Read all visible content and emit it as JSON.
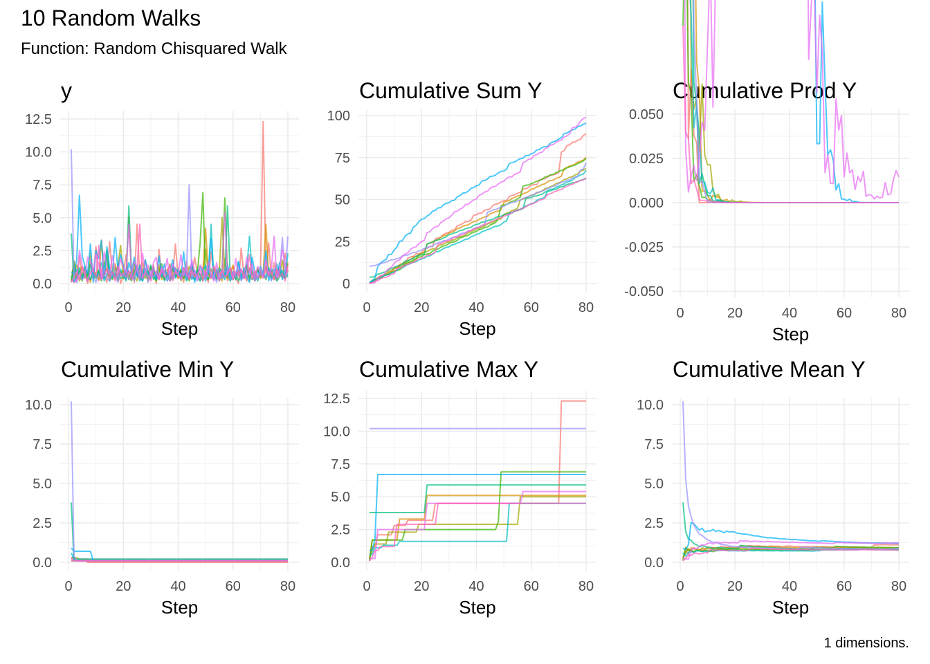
{
  "title": "10 Random Walks",
  "subtitle": "Function: Random Chisquared Walk",
  "caption": "1 dimensions.",
  "chart_data": {
    "type": "line",
    "colors": [
      "#F8766D",
      "#D89000",
      "#A3A500",
      "#39B600",
      "#00BF7D",
      "#00BFC4",
      "#00B0F6",
      "#9590FF",
      "#E76BF3",
      "#FF62BC"
    ],
    "x": "Step 1..80",
    "grid": true,
    "legend": "none",
    "series": [
      {
        "y": [
          0.3,
          1.2,
          0.1,
          2.1,
          0.5,
          0.9,
          0.0,
          1.6,
          0.4,
          2.8,
          0.2,
          1.1,
          0.6,
          0.1,
          3.2,
          0.8,
          0.3,
          1.5,
          0.0,
          0.7,
          2.2,
          0.4,
          1.0,
          0.1,
          4.5,
          0.6,
          0.2,
          1.8,
          0.9,
          0.3,
          1.4,
          0.0,
          2.6,
          0.5,
          0.8,
          1.1,
          0.2,
          0.6,
          3.0,
          0.4,
          0.9,
          0.1,
          1.7,
          0.3,
          0.5,
          2.0,
          0.8,
          0.2,
          1.2,
          0.6,
          0.1,
          2.4,
          0.7,
          0.3,
          1.0,
          0.5,
          1.9,
          0.2,
          0.8,
          1.3,
          0.4,
          0.0,
          2.7,
          0.6,
          0.2,
          1.1,
          0.9,
          0.3,
          0.5,
          0.7,
          12.3,
          0.8,
          3.1,
          0.4,
          1.6,
          0.2,
          1.0,
          0.6,
          2.3,
          0.9
        ]
      },
      {
        "y": [
          0.2,
          1.7,
          0.5,
          0.9,
          1.3,
          0.4,
          0.8,
          0.1,
          1.1,
          0.6,
          0.3,
          3.3,
          0.7,
          1.2,
          0.4,
          0.9,
          1.5,
          0.2,
          0.8,
          1.0,
          0.6,
          5.1,
          0.3,
          1.1,
          0.7,
          0.4,
          1.6,
          0.9,
          0.2,
          1.3,
          0.5,
          0.8,
          1.4,
          0.3,
          1.0,
          0.6,
          0.2,
          1.2,
          0.7,
          0.4,
          1.1,
          0.5,
          0.9,
          0.3,
          1.5,
          0.6,
          0.8,
          0.2,
          1.0,
          4.2,
          0.7,
          0.4,
          1.3,
          0.6,
          0.9,
          0.2,
          1.1,
          0.5,
          0.8,
          1.4,
          0.3,
          1.0,
          0.6,
          0.9,
          0.4,
          1.2,
          0.7,
          0.2,
          1.1,
          0.5,
          0.8,
          4.5,
          0.6,
          1.0,
          0.3,
          0.9,
          1.2,
          0.4,
          0.7,
          1.6
        ]
      },
      {
        "y": [
          0.3,
          0.9,
          1.4,
          0.2,
          0.7,
          1.1,
          0.5,
          2.3,
          0.4,
          0.8,
          1.0,
          0.3,
          0.6,
          1.2,
          0.2,
          0.9,
          0.5,
          1.3,
          2.9,
          0.4,
          0.8,
          0.3,
          1.1,
          0.6,
          0.2,
          1.4,
          0.7,
          0.4,
          1.0,
          0.5,
          0.9,
          0.2,
          1.2,
          0.6,
          0.3,
          0.8,
          1.5,
          0.4,
          0.7,
          1.1,
          0.2,
          0.9,
          0.5,
          1.3,
          0.6,
          0.3,
          1.0,
          0.7,
          0.4,
          2.6,
          0.8,
          0.5,
          1.2,
          0.3,
          0.9,
          5.0,
          0.6,
          0.4,
          1.1,
          0.7,
          0.3,
          1.0,
          0.5,
          0.8,
          1.4,
          0.2,
          0.9,
          0.6,
          1.2,
          0.4,
          0.7,
          1.3,
          0.5,
          0.9,
          0.3,
          1.1,
          0.6,
          1.8,
          0.4,
          1.0
        ]
      },
      {
        "y": [
          0.1,
          1.7,
          0.4,
          0.9,
          0.2,
          1.3,
          0.6,
          0.3,
          1.1,
          0.5,
          0.8,
          0.2,
          1.4,
          2.5,
          0.7,
          0.3,
          1.2,
          0.6,
          0.9,
          0.4,
          1.0,
          0.5,
          0.2,
          1.6,
          0.8,
          0.3,
          1.1,
          0.7,
          0.4,
          1.3,
          0.6,
          0.2,
          0.9,
          1.5,
          0.4,
          0.8,
          0.3,
          1.2,
          0.5,
          0.7,
          1.0,
          0.4,
          0.9,
          0.2,
          1.3,
          0.6,
          0.8,
          3.1,
          6.9,
          0.5,
          0.3,
          1.1,
          0.7,
          0.4,
          1.2,
          0.9,
          6.5,
          0.6,
          0.2,
          0.8,
          0.5,
          1.0,
          0.3,
          0.7,
          1.4,
          0.4,
          0.9,
          0.2,
          1.1,
          0.6,
          0.8,
          0.3,
          1.2,
          0.5,
          0.7,
          0.4,
          1.0,
          0.6,
          0.9,
          1.5
        ]
      },
      {
        "y": [
          3.8,
          0.1,
          0.5,
          1.2,
          0.3,
          0.8,
          0.2,
          1.5,
          0.6,
          0.4,
          1.0,
          0.3,
          0.7,
          2.0,
          0.2,
          0.9,
          0.5,
          1.3,
          0.4,
          0.6,
          0.2,
          5.9,
          0.8,
          0.3,
          1.1,
          0.5,
          0.2,
          0.9,
          0.6,
          1.4,
          0.3,
          0.7,
          0.4,
          1.0,
          0.2,
          0.8,
          0.5,
          0.3,
          1.2,
          0.6,
          0.4,
          0.9,
          0.2,
          0.7,
          0.5,
          0.3,
          1.1,
          0.6,
          0.2,
          0.8,
          0.4,
          0.6,
          0.3,
          1.0,
          0.2,
          0.7,
          0.5,
          5.9,
          0.4,
          0.3,
          0.8,
          0.2,
          0.6,
          0.4,
          1.2,
          0.5,
          0.3,
          0.7,
          0.2,
          0.9,
          0.6,
          0.4,
          1.0,
          0.3,
          0.7,
          0.2,
          0.5,
          0.8,
          0.4,
          0.6
        ]
      },
      {
        "y": [
          0.6,
          0.2,
          1.1,
          0.8,
          0.4,
          1.3,
          0.7,
          0.3,
          1.0,
          0.5,
          0.9,
          1.6,
          0.2,
          0.7,
          1.2,
          0.4,
          0.8,
          0.3,
          1.1,
          0.6,
          0.5,
          1.0,
          0.3,
          0.9,
          1.4,
          0.2,
          0.7,
          1.2,
          0.6,
          0.4,
          1.1,
          0.3,
          0.8,
          0.5,
          1.0,
          0.7,
          0.2,
          1.3,
          0.6,
          0.9,
          0.4,
          1.2,
          0.5,
          0.8,
          0.3,
          1.0,
          0.6,
          0.2,
          0.9,
          1.4,
          0.7,
          4.5,
          0.3,
          1.1,
          0.6,
          0.4,
          0.8,
          1.2,
          0.5,
          0.9,
          0.3,
          1.6,
          0.7,
          0.4,
          1.1,
          3.6,
          0.8,
          0.2,
          1.0,
          0.6,
          0.9,
          0.5,
          1.2,
          0.3,
          0.8,
          1.5,
          0.6,
          1.0,
          0.4,
          2.3
        ]
      },
      {
        "y": [
          0.9,
          0.7,
          1.8,
          6.7,
          2.1,
          1.3,
          0.8,
          3.0,
          0.1,
          2.5,
          1.9,
          3.3,
          0.4,
          2.8,
          1.2,
          0.6,
          3.5,
          1.1,
          2.2,
          1.4,
          0.3,
          1.6,
          0.9,
          2.0,
          0.5,
          1.4,
          0.2,
          1.8,
          0.7,
          0.4,
          1.2,
          0.3,
          2.1,
          0.6,
          1.5,
          0.2,
          0.9,
          1.8,
          0.4,
          1.1,
          0.5,
          2.4,
          0.3,
          0.8,
          1.6,
          0.1,
          0.7,
          1.3,
          0.9,
          0.2,
          1.0,
          3.4,
          0.6,
          0.4,
          1.1,
          0.8,
          0.3,
          1.5,
          0.2,
          0.9,
          0.6,
          1.7,
          0.3,
          1.2,
          0.5,
          0.1,
          2.0,
          0.8,
          0.4,
          1.3,
          0.7,
          2.5,
          0.2,
          1.1,
          0.9,
          0.4,
          1.6,
          0.3,
          1.0,
          0.6
        ]
      },
      {
        "y": [
          10.2,
          0.4,
          0.1,
          0.8,
          0.3,
          0.6,
          0.2,
          1.0,
          0.5,
          0.1,
          0.7,
          0.3,
          1.2,
          0.4,
          0.2,
          0.9,
          0.6,
          0.1,
          0.8,
          0.5,
          1.1,
          0.3,
          0.7,
          0.2,
          1.4,
          0.6,
          0.4,
          0.9,
          0.1,
          1.0,
          0.5,
          0.8,
          0.3,
          1.3,
          0.6,
          0.2,
          0.9,
          0.4,
          1.1,
          0.7,
          0.3,
          0.8,
          0.5,
          7.5,
          0.4,
          1.0,
          0.2,
          0.6,
          0.9,
          0.3,
          1.2,
          0.5,
          0.7,
          0.1,
          0.8,
          0.4,
          1.1,
          0.6,
          0.3,
          0.9,
          0.5,
          1.3,
          0.2,
          0.7,
          0.4,
          1.0,
          0.6,
          0.8,
          0.3,
          1.2,
          0.7,
          0.4,
          0.9,
          0.2,
          1.1,
          0.5,
          0.8,
          3.5,
          0.6,
          3.6
        ]
      },
      {
        "y": [
          0.3,
          0.1,
          0.2,
          2.5,
          1.4,
          0.6,
          2.0,
          1.8,
          0.9,
          2.2,
          1.5,
          0.4,
          2.4,
          1.3,
          0.7,
          2.1,
          1.0,
          0.5,
          1.9,
          1.2,
          0.8,
          4.5,
          0.6,
          1.7,
          1.1,
          0.3,
          2.3,
          0.9,
          1.4,
          0.5,
          1.6,
          2.0,
          0.4,
          1.2,
          0.8,
          1.9,
          0.2,
          1.5,
          1.0,
          0.7,
          2.2,
          0.6,
          1.3,
          0.4,
          1.8,
          0.9,
          0.3,
          1.4,
          1.1,
          0.5,
          1.7,
          0.8,
          0.2,
          1.6,
          0.4,
          1.0,
          5.4,
          0.7,
          1.2,
          0.3,
          1.9,
          0.6,
          1.1,
          0.4,
          2.0,
          0.8,
          1.5,
          0.2,
          1.3,
          0.9,
          0.5,
          1.8,
          0.7,
          1.2,
          3.6,
          0.4,
          1.1,
          2.6,
          1.4,
          0.8
        ]
      },
      {
        "y": [
          0.1,
          0.4,
          0.9,
          0.3,
          1.2,
          0.6,
          0.2,
          0.8,
          1.0,
          0.5,
          2.9,
          0.3,
          0.7,
          1.1,
          0.4,
          0.9,
          0.2,
          1.3,
          0.6,
          0.8,
          0.5,
          1.0,
          0.3,
          0.7,
          1.2,
          4.5,
          0.4,
          0.9,
          0.6,
          0.2,
          1.1,
          0.8,
          0.3,
          1.0,
          0.5,
          0.7,
          1.4,
          0.2,
          0.9,
          0.6,
          0.4,
          1.2,
          0.8,
          0.3,
          1.0,
          0.5,
          0.7,
          1.1,
          0.2,
          0.9,
          0.6,
          0.4,
          1.3,
          0.8,
          0.2,
          1.0,
          0.5,
          0.7,
          1.2,
          0.3,
          0.9,
          0.6,
          1.1,
          0.4,
          0.8,
          2.2,
          0.3,
          1.0,
          0.5,
          0.7,
          0.4,
          1.2,
          0.6,
          0.9,
          0.3,
          1.1,
          0.5,
          0.8,
          0.2,
          1.4
        ]
      }
    ],
    "panels": [
      {
        "title": "y",
        "transform": "y",
        "xlabel": "Step",
        "xticks": [
          "0",
          "20",
          "40",
          "60",
          "80"
        ],
        "yticks": [
          "0.0",
          "2.5",
          "5.0",
          "7.5",
          "10.0",
          "12.5"
        ],
        "ylim": [
          0,
          12.5
        ]
      },
      {
        "title": "Cumulative Sum Y",
        "transform": "cumsum",
        "xlabel": "Step",
        "xticks": [
          "0",
          "20",
          "40",
          "60",
          "80"
        ],
        "yticks": [
          "0",
          "25",
          "50",
          "75",
          "100"
        ],
        "ylim": [
          0,
          100
        ]
      },
      {
        "title": "Cumulative Prod Y",
        "transform": "cumprod",
        "xlabel": "Step",
        "xticks": [
          "0",
          "20",
          "40",
          "60",
          "80"
        ],
        "yticks": [
          "-0.050",
          "-0.025",
          "0.000",
          "0.025",
          "0.050"
        ],
        "ylim": [
          -0.05,
          0.05
        ]
      },
      {
        "title": "Cumulative Min Y",
        "transform": "cummin",
        "xlabel": "Step",
        "xticks": [
          "0",
          "20",
          "40",
          "60",
          "80"
        ],
        "yticks": [
          "0.0",
          "2.5",
          "5.0",
          "7.5",
          "10.0"
        ],
        "ylim": [
          0,
          10
        ]
      },
      {
        "title": "Cumulative Max Y",
        "transform": "cummax",
        "xlabel": "Step",
        "xticks": [
          "0",
          "20",
          "40",
          "60",
          "80"
        ],
        "yticks": [
          "0.0",
          "2.5",
          "5.0",
          "7.5",
          "10.0",
          "12.5"
        ],
        "ylim": [
          0,
          12.5
        ]
      },
      {
        "title": "Cumulative Mean Y",
        "transform": "cummean",
        "xlabel": "Step",
        "xticks": [
          "0",
          "20",
          "40",
          "60",
          "80"
        ],
        "yticks": [
          "0.0",
          "2.5",
          "5.0",
          "7.5",
          "10.0"
        ],
        "ylim": [
          0,
          10
        ]
      }
    ]
  }
}
